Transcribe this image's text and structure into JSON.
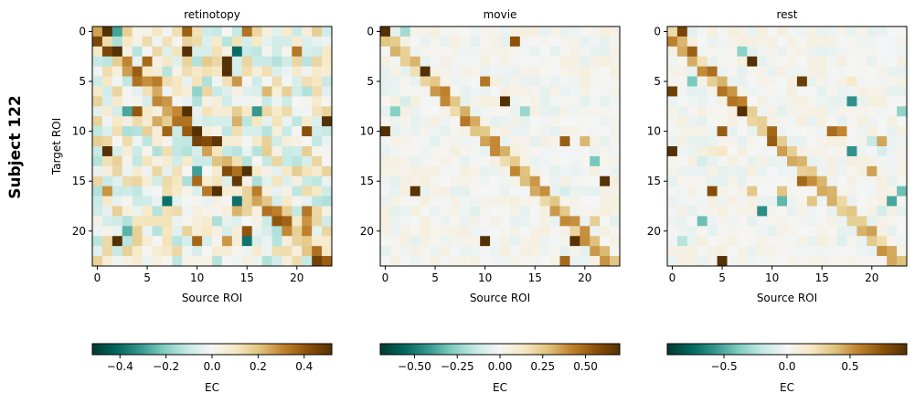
{
  "figure": {
    "row_label": "Subject 122"
  },
  "colormap": {
    "name": "BrBG_r",
    "stops": [
      "#003c30",
      "#01665e",
      "#35978f",
      "#80cdc1",
      "#c7eae5",
      "#f5f5f5",
      "#f6e8c3",
      "#dfc27d",
      "#bf812d",
      "#8c510a",
      "#543005"
    ]
  },
  "chart_data": [
    {
      "type": "heatmap",
      "title": "retinotopy",
      "xlabel": "Source ROI",
      "ylabel": "Target ROI",
      "n": 24,
      "x_ticks": [
        "0",
        "5",
        "10",
        "15",
        "20"
      ],
      "y_ticks": [
        "0",
        "5",
        "10",
        "15",
        "20"
      ],
      "colorbar": {
        "label": "EC",
        "range": [
          -0.52,
          0.52
        ],
        "ticks": [
          {
            "value": -0.4,
            "label": "−0.4"
          },
          {
            "value": -0.2,
            "label": "−0.2"
          },
          {
            "value": 0.0,
            "label": "0.0"
          },
          {
            "value": 0.2,
            "label": "0.2"
          },
          {
            "value": 0.4,
            "label": "0.4"
          }
        ]
      },
      "pattern": {
        "seed": 7,
        "noise": 0.16,
        "diag": 0.3,
        "spikes": 0.1
      }
    },
    {
      "type": "heatmap",
      "title": "movie",
      "xlabel": "Source ROI",
      "ylabel": "",
      "n": 24,
      "x_ticks": [
        "0",
        "5",
        "10",
        "15",
        "20"
      ],
      "y_ticks": [
        "0",
        "5",
        "10",
        "15",
        "20"
      ],
      "colorbar": {
        "label": "EC",
        "range": [
          -0.7,
          0.7
        ],
        "ticks": [
          {
            "value": -0.5,
            "label": "−0.50"
          },
          {
            "value": -0.25,
            "label": "−0.25"
          },
          {
            "value": 0.0,
            "label": "0.00"
          },
          {
            "value": 0.25,
            "label": "0.25"
          },
          {
            "value": 0.5,
            "label": "0.50"
          }
        ]
      },
      "pattern": {
        "seed": 19,
        "noise": 0.06,
        "diag": 0.32,
        "spikes": 0.05
      }
    },
    {
      "type": "heatmap",
      "title": "rest",
      "xlabel": "Source ROI",
      "ylabel": "",
      "n": 24,
      "x_ticks": [
        "0",
        "5",
        "10",
        "15",
        "20"
      ],
      "y_ticks": [
        "0",
        "5",
        "10",
        "15",
        "20"
      ],
      "colorbar": {
        "label": "EC",
        "range": [
          -0.95,
          0.95
        ],
        "ticks": [
          {
            "value": -0.5,
            "label": "−0.5"
          },
          {
            "value": 0.0,
            "label": "0.0"
          },
          {
            "value": 0.5,
            "label": "0.5"
          }
        ]
      },
      "pattern": {
        "seed": 31,
        "noise": 0.08,
        "diag": 0.45,
        "spikes": 0.08
      }
    }
  ]
}
